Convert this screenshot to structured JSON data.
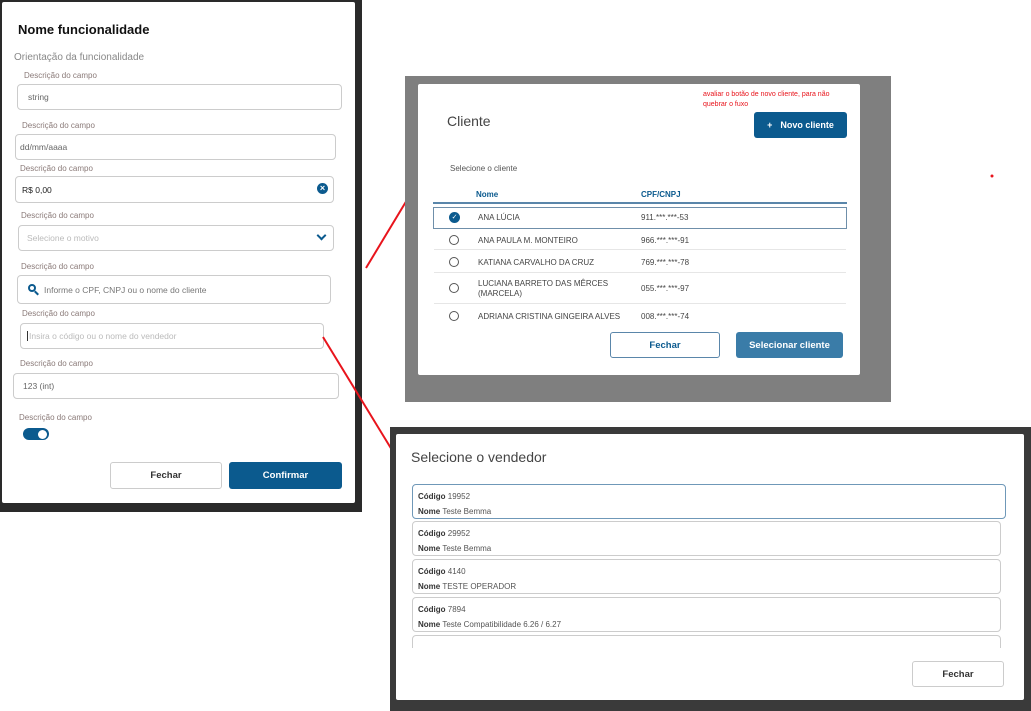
{
  "form": {
    "title": "Nome funcionalidade",
    "subtitle": "Orientação da funcionalidade",
    "fields": [
      {
        "label": "Descrição do campo",
        "value": "string"
      },
      {
        "label": "Descrição do campo",
        "value": "dd/mm/aaaa"
      },
      {
        "label": "Descrição do campo",
        "value": "R$ 0,00"
      },
      {
        "label": "Descrição do campo",
        "placeholder": "Selecione o motivo"
      },
      {
        "label": "Descrição do campo",
        "placeholder": "Informe o CPF, CNPJ ou o nome do cliente"
      },
      {
        "label": "Descrição do campo",
        "placeholder": "Insira o código ou o nome do vendedor"
      },
      {
        "label": "Descrição do campo",
        "value": "123 (int)"
      },
      {
        "label": "Descrição do campo",
        "toggle": true
      }
    ],
    "close": "Fechar",
    "confirm": "Confirmar"
  },
  "client": {
    "title": "Cliente",
    "note": "avaliar o botão de novo cliente, para não quebrar o fuxo",
    "new_button": "Novo cliente",
    "new_icon": "+",
    "subtitle": "Selecione o cliente",
    "columns": [
      "Nome",
      "CPF/CNPJ"
    ],
    "rows": [
      {
        "name": "ANA LÚCIA",
        "doc": "911.***.***-53",
        "selected": true
      },
      {
        "name": "ANA PAULA M. MONTEIRO",
        "doc": "966.***.***-91"
      },
      {
        "name": "KATIANA CARVALHO DA CRUZ",
        "doc": "769.***.***-78"
      },
      {
        "name": "LUCIANA BARRETO DAS MÊRCES (MARCELA)",
        "doc": "055.***.***-97"
      },
      {
        "name": "ADRIANA CRISTINA GINGEIRA ALVES",
        "doc": "008.***.***-74"
      }
    ],
    "close": "Fechar",
    "select": "Selecionar cliente"
  },
  "seller": {
    "title": "Selecione o vendedor",
    "code_label": "Código",
    "name_label": "Nome",
    "items": [
      {
        "code": "19952",
        "name": "Teste Bemma",
        "selected": true
      },
      {
        "code": "29952",
        "name": "Teste Bemma"
      },
      {
        "code": "4140",
        "name": "TESTE OPERADOR"
      },
      {
        "code": "7894",
        "name": "Teste Compatibilidade 6.26 / 6.27"
      }
    ],
    "close": "Fechar"
  },
  "colors": {
    "primary": "#0b5a8e",
    "annotation": "#e8141c"
  }
}
